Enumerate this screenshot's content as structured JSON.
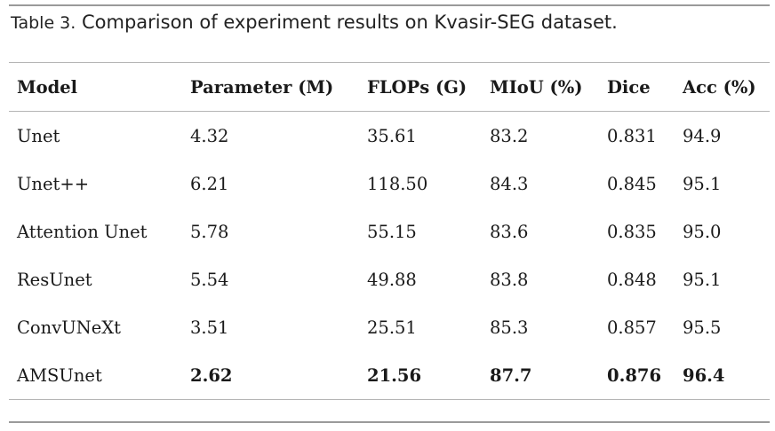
{
  "caption": {
    "label": "Table 3.",
    "text": "Comparison of experiment results on Kvasir-SEG dataset."
  },
  "table": {
    "headers": [
      "Model",
      "Parameter (M)",
      "FLOPs (G)",
      "MIoU (%)",
      "Dice",
      "Acc (%)"
    ],
    "rows": [
      [
        "Unet",
        "4.32",
        "35.61",
        "83.2",
        "0.831",
        "94.9"
      ],
      [
        "Unet++",
        "6.21",
        "118.50",
        "84.3",
        "0.845",
        "95.1"
      ],
      [
        "Attention Unet",
        "5.78",
        "55.15",
        "83.6",
        "0.835",
        "95.0"
      ],
      [
        "ResUnet",
        "5.54",
        "49.88",
        "83.8",
        "0.848",
        "95.1"
      ],
      [
        "ConvUNeXt",
        "3.51",
        "25.51",
        "85.3",
        "0.857",
        "95.5"
      ],
      [
        "AMSUnet",
        "2.62",
        "21.56",
        "87.7",
        "0.876",
        "96.4"
      ]
    ]
  }
}
